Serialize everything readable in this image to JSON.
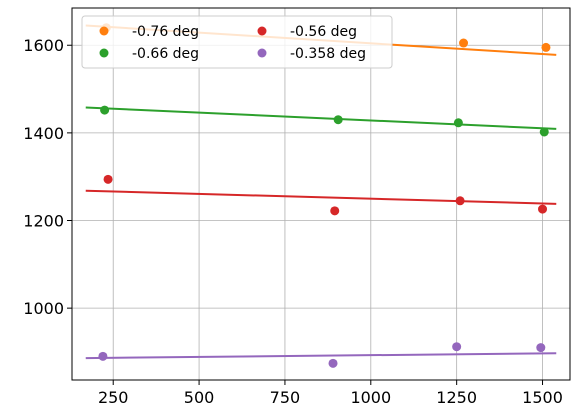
{
  "chart_data": {
    "type": "scatter",
    "title": "",
    "xlabel": "",
    "ylabel": "",
    "xlim": [
      130,
      1580
    ],
    "ylim": [
      836,
      1685
    ],
    "xticks": [
      250,
      500,
      750,
      1000,
      1250,
      1500
    ],
    "yticks": [
      1000,
      1200,
      1400,
      1600
    ],
    "grid": true,
    "legend": {
      "placement": "top-left",
      "columns": 2
    },
    "fit_x_range": [
      170,
      1540
    ],
    "series": [
      {
        "name": "-0.76 deg",
        "color": "#ff7f0e",
        "points": [
          [
            230,
            1640
          ],
          [
            1270,
            1605
          ],
          [
            1510,
            1595
          ]
        ],
        "fit": [
          1645,
          1578
        ]
      },
      {
        "name": "-0.66 deg",
        "color": "#2ca02c",
        "points": [
          [
            225,
            1452
          ],
          [
            905,
            1430
          ],
          [
            1255,
            1423
          ],
          [
            1505,
            1402
          ]
        ],
        "fit": [
          1458,
          1409
        ]
      },
      {
        "name": "-0.56 deg",
        "color": "#d62728",
        "points": [
          [
            235,
            1294
          ],
          [
            895,
            1222
          ],
          [
            1260,
            1245
          ],
          [
            1500,
            1226
          ]
        ],
        "fit": [
          1268,
          1238
        ]
      },
      {
        "name": "-0.358 deg",
        "color": "#9467bd",
        "points": [
          [
            220,
            890
          ],
          [
            890,
            874
          ],
          [
            1250,
            912
          ],
          [
            1495,
            910
          ]
        ],
        "fit": [
          886,
          897
        ]
      }
    ]
  }
}
